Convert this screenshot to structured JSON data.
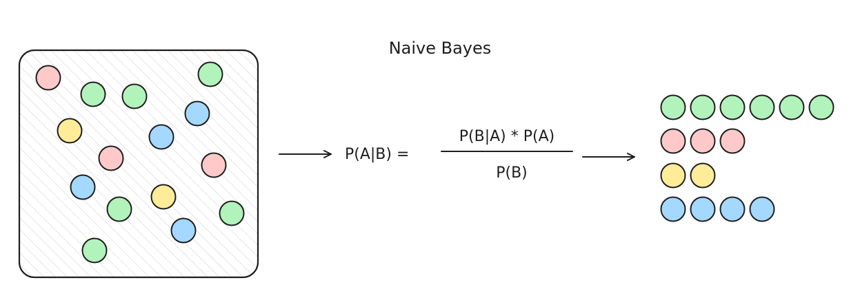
{
  "title": "Naive Bayes",
  "formula": {
    "lhs": "P(A|B) =",
    "numerator": "P(B|A) * P(A)",
    "denominator": "P(B)"
  },
  "colors": {
    "green": "#b2f2bb",
    "red": "#ffc9c9",
    "yellow": "#ffec99",
    "blue": "#a5d8ff",
    "stroke": "#1e1e1e",
    "hatch": "#d4d4d4"
  },
  "dataset": {
    "points": [
      {
        "class": "red"
      },
      {
        "class": "green"
      },
      {
        "class": "green"
      },
      {
        "class": "green"
      },
      {
        "class": "blue"
      },
      {
        "class": "yellow"
      },
      {
        "class": "blue"
      },
      {
        "class": "red"
      },
      {
        "class": "red"
      },
      {
        "class": "blue"
      },
      {
        "class": "green"
      },
      {
        "class": "yellow"
      },
      {
        "class": "green"
      },
      {
        "class": "blue"
      },
      {
        "class": "green"
      }
    ]
  },
  "result": {
    "groups": [
      {
        "class": "green",
        "count": 6
      },
      {
        "class": "red",
        "count": 3
      },
      {
        "class": "yellow",
        "count": 2
      },
      {
        "class": "blue",
        "count": 4
      }
    ]
  }
}
